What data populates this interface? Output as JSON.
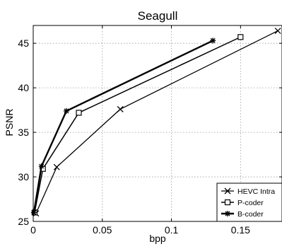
{
  "chart_data": {
    "type": "line",
    "title": "Seagull",
    "xlabel": "bpp",
    "ylabel": "PSNR",
    "xlim": [
      0,
      0.18
    ],
    "ylim": [
      25,
      47
    ],
    "xticks": [
      0,
      0.05,
      0.1,
      0.15
    ],
    "xtick_labels": [
      "0",
      "0.05",
      "0.1",
      "0.15"
    ],
    "yticks": [
      25,
      30,
      35,
      40,
      45
    ],
    "ytick_labels": [
      "25",
      "30",
      "35",
      "40",
      "45"
    ],
    "grid": true,
    "legend_position": "bottom-right",
    "series": [
      {
        "name": "HEVC Intra",
        "marker": "x",
        "color": "#000000",
        "x": [
          0.002,
          0.017,
          0.063,
          0.177
        ],
        "y": [
          25.9,
          31.1,
          37.6,
          46.4
        ]
      },
      {
        "name": "P-coder",
        "marker": "square",
        "color": "#000000",
        "x": [
          0.001,
          0.007,
          0.033,
          0.15
        ],
        "y": [
          26.0,
          30.9,
          37.2,
          45.7
        ]
      },
      {
        "name": "B-coder",
        "marker": "star",
        "color": "#000000",
        "x": [
          0.0005,
          0.006,
          0.024,
          0.13
        ],
        "y": [
          26.0,
          31.2,
          37.4,
          45.3
        ]
      }
    ]
  }
}
